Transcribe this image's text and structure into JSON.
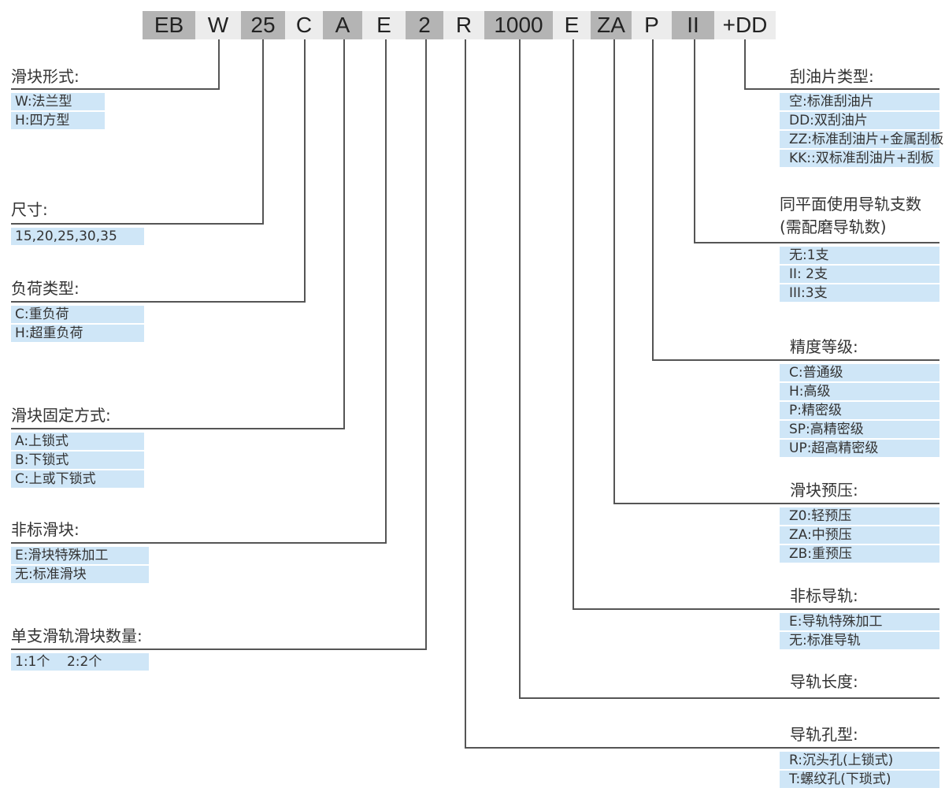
{
  "code_segments": [
    {
      "text": "EB",
      "shade": "dark"
    },
    {
      "text": "W",
      "shade": "light"
    },
    {
      "text": "25",
      "shade": "dark"
    },
    {
      "text": "C",
      "shade": "light"
    },
    {
      "text": "A",
      "shade": "dark"
    },
    {
      "text": "E",
      "shade": "light"
    },
    {
      "text": "2",
      "shade": "dark"
    },
    {
      "text": "R",
      "shade": "light"
    },
    {
      "text": "1000",
      "shade": "dark"
    },
    {
      "text": "E",
      "shade": "light"
    },
    {
      "text": "ZA",
      "shade": "dark"
    },
    {
      "text": "P",
      "shade": "light"
    },
    {
      "text": "II",
      "shade": "dark"
    },
    {
      "text": "+DD",
      "shade": "light"
    }
  ],
  "colors": {
    "dark_segment": "#b4b4b4",
    "light_segment": "#ececec",
    "option_fill": "#cfe6f7",
    "line": "#555555"
  },
  "left_groups": [
    {
      "segment": 1,
      "title": "滑块形式:",
      "options": [
        "W:法兰型",
        "H:四方型"
      ]
    },
    {
      "segment": 2,
      "title": "尺寸:",
      "options": [
        "15,20,25,30,35"
      ]
    },
    {
      "segment": 3,
      "title": "负荷类型:",
      "options": [
        "C:重负荷",
        "H:超重负荷"
      ]
    },
    {
      "segment": 4,
      "title": "滑块固定方式:",
      "options": [
        "A:上锁式",
        "B:下锁式",
        "C:上或下锁式"
      ]
    },
    {
      "segment": 5,
      "title": "非标滑块:",
      "options": [
        "E:滑块特殊加工",
        "无:标准滑块"
      ]
    },
    {
      "segment": 6,
      "title": "单支滑轨滑块数量:",
      "options": [
        "1:1个    2:2个"
      ]
    }
  ],
  "right_groups": [
    {
      "segment": 13,
      "title": "刮油片类型:",
      "options": [
        "空:标准刮油片",
        "DD:双刮油片",
        "ZZ:标准刮油片+金属刮板",
        "KK::双标准刮油片+刮板"
      ]
    },
    {
      "segment": 12,
      "title": "同平面使用导轨支数",
      "subtitle": "(需配磨导轨数)",
      "options": [
        "无:1支",
        "II: 2支",
        "III:3支"
      ]
    },
    {
      "segment": 11,
      "title": "精度等级:",
      "options": [
        "C:普通级",
        "H:高级",
        "P:精密级",
        "SP:高精密级",
        "UP:超高精密级"
      ]
    },
    {
      "segment": 10,
      "title": "滑块预压:",
      "options": [
        "Z0:轻预压",
        "ZA:中预压",
        "ZB:重预压"
      ]
    },
    {
      "segment": 9,
      "title": "非标导轨:",
      "options": [
        "E:导轨特殊加工",
        "无:标准导轨"
      ]
    },
    {
      "segment": 8,
      "title": "导轨长度:",
      "options": []
    },
    {
      "segment": 7,
      "title": "导轨孔型:",
      "options": [
        "R:沉头孔(上锁式)",
        "T:螺纹孔(下琐式)"
      ]
    }
  ]
}
